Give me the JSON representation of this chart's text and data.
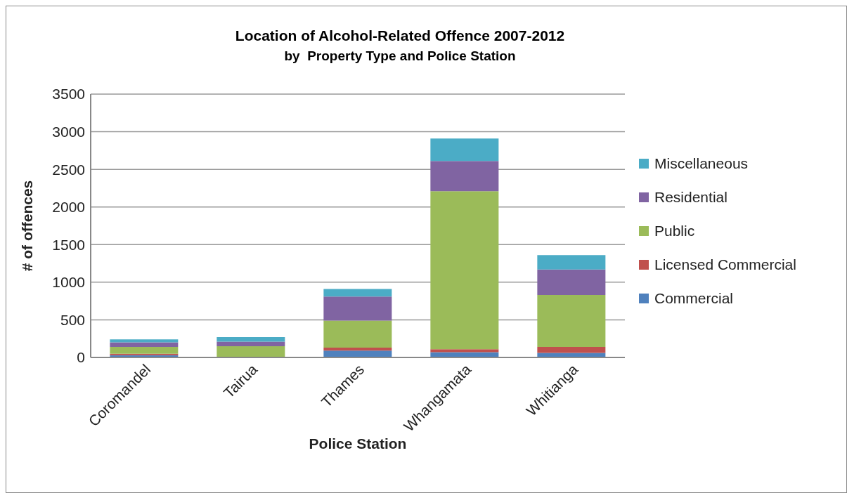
{
  "chart_data": {
    "type": "bar",
    "title": "Location of Alcohol-Related Offence 2007-2012",
    "subtitle": "by  Property Type and Police Station",
    "xlabel": "Police Station",
    "ylabel": "# of offences",
    "categories": [
      "Coromandel",
      "Tairua",
      "Thames",
      "Whangamata",
      "Whitianga"
    ],
    "stacked": true,
    "ylim": [
      0,
      3500
    ],
    "yticks": [
      0,
      500,
      1000,
      1500,
      2000,
      2500,
      3000,
      3500
    ],
    "grid": "y",
    "legend": "right",
    "series": [
      {
        "name": "Commercial",
        "color": "#4f81bd",
        "values": [
          30,
          10,
          90,
          70,
          60
        ]
      },
      {
        "name": "Licensed Commercial",
        "color": "#c0504d",
        "values": [
          20,
          0,
          40,
          40,
          80
        ]
      },
      {
        "name": "Public",
        "color": "#9bbb59",
        "values": [
          90,
          140,
          360,
          2100,
          690
        ]
      },
      {
        "name": "Residential",
        "color": "#8064a2",
        "values": [
          60,
          60,
          320,
          400,
          340
        ]
      },
      {
        "name": "Miscellaneous",
        "color": "#4bacc6",
        "values": [
          40,
          60,
          100,
          300,
          190
        ]
      }
    ]
  }
}
